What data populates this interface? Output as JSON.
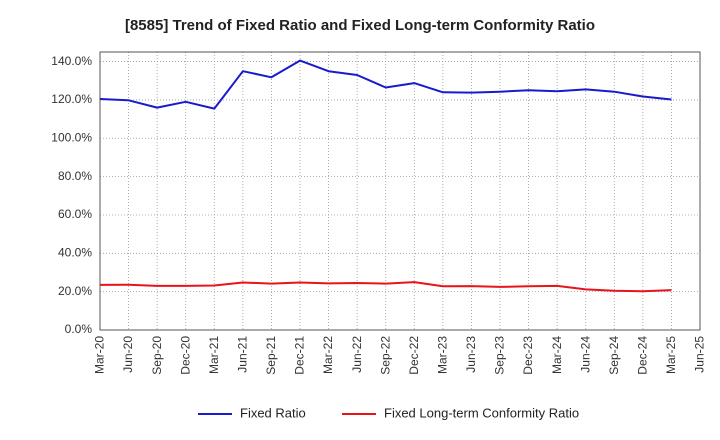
{
  "chart_data": {
    "type": "line",
    "title": "[8585]  Trend of Fixed Ratio and Fixed Long-term Conformity Ratio",
    "xlabel": "",
    "ylabel": "",
    "x": [
      "Mar-20",
      "Jun-20",
      "Sep-20",
      "Dec-20",
      "Mar-21",
      "Jun-21",
      "Sep-21",
      "Dec-21",
      "Mar-22",
      "Jun-22",
      "Sep-22",
      "Dec-22",
      "Mar-23",
      "Jun-23",
      "Sep-23",
      "Dec-23",
      "Mar-24",
      "Jun-24",
      "Sep-24",
      "Dec-24",
      "Mar-25"
    ],
    "x_ticks": [
      "Mar-20",
      "Jun-20",
      "Sep-20",
      "Dec-20",
      "Mar-21",
      "Jun-21",
      "Sep-21",
      "Dec-21",
      "Mar-22",
      "Jun-22",
      "Sep-22",
      "Dec-22",
      "Mar-23",
      "Jun-23",
      "Sep-23",
      "Dec-23",
      "Mar-24",
      "Jun-24",
      "Sep-24",
      "Dec-24",
      "Mar-25",
      "Jun-25"
    ],
    "y_ticks": [
      "0.0%",
      "20.0%",
      "40.0%",
      "60.0%",
      "80.0%",
      "100.0%",
      "120.0%",
      "140.0%"
    ],
    "ylim": [
      0,
      145
    ],
    "y_unit": "%",
    "grid": true,
    "grid_style": "dotted",
    "legend_position": "bottom-center",
    "series": [
      {
        "name": "Fixed Ratio",
        "color": "#1a1acc",
        "values": [
          120.5,
          119.8,
          116.0,
          119.0,
          115.5,
          135.0,
          131.8,
          140.5,
          135.0,
          133.0,
          126.5,
          128.8,
          124.0,
          123.8,
          124.3,
          125.0,
          124.5,
          125.5,
          124.3,
          121.8,
          120.2
        ]
      },
      {
        "name": "Fixed Long-term Conformity Ratio",
        "color": "#e8141c",
        "values": [
          23.5,
          23.6,
          23.0,
          23.0,
          23.2,
          24.8,
          24.2,
          24.8,
          24.3,
          24.5,
          24.2,
          25.0,
          22.8,
          22.9,
          22.5,
          22.8,
          23.0,
          21.2,
          20.5,
          20.2,
          20.8
        ]
      }
    ]
  }
}
